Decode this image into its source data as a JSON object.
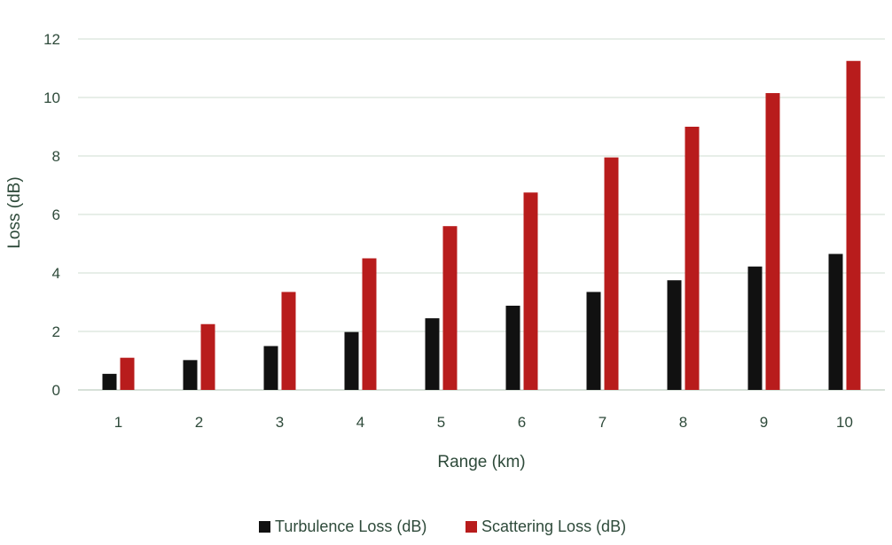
{
  "chart_data": {
    "type": "bar",
    "xlabel": "Range (km)",
    "ylabel": "Loss (dB)",
    "categories": [
      "1",
      "2",
      "3",
      "4",
      "5",
      "6",
      "7",
      "8",
      "9",
      "10"
    ],
    "ylim": [
      0,
      12
    ],
    "yticks": [
      0,
      2,
      4,
      6,
      8,
      10,
      12
    ],
    "grid": true,
    "legend_position": "bottom",
    "series": [
      {
        "name": "Turbulence Loss (dB)",
        "color": "#111111",
        "values": [
          0.55,
          1.02,
          1.5,
          1.98,
          2.45,
          2.88,
          3.35,
          3.75,
          4.22,
          4.65
        ]
      },
      {
        "name": "Scattering Loss (dB)",
        "color": "#b81c1c",
        "values": [
          1.1,
          2.25,
          3.35,
          4.5,
          5.6,
          6.75,
          7.95,
          9.0,
          10.15,
          11.25
        ]
      }
    ]
  }
}
